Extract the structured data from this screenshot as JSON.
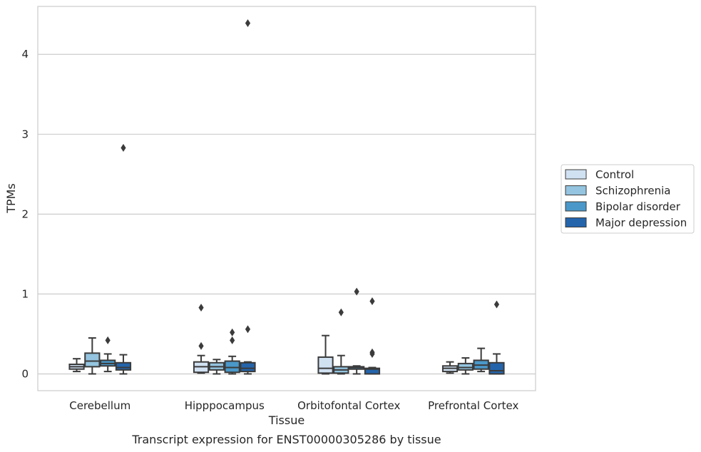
{
  "chart_data": {
    "type": "box",
    "title": "",
    "caption": "Transcript expression for ENST00000305286 by tissue",
    "xlabel": "Tissue",
    "ylabel": "TPMs",
    "ylim": [
      -0.21,
      4.6
    ],
    "yticks": [
      0,
      1,
      2,
      3,
      4
    ],
    "grid": "horizontal",
    "legend_position": "right",
    "categories": [
      "Cerebellum",
      "Hipppocampus",
      "Orbitofontal Cortex",
      "Prefrontal Cortex"
    ],
    "series": [
      {
        "name": "Control",
        "color": "#d0e1f2",
        "boxes": [
          {
            "whislo": 0.03,
            "q1": 0.06,
            "med": 0.09,
            "q3": 0.12,
            "whishi": 0.19,
            "fliers": []
          },
          {
            "whislo": 0.01,
            "q1": 0.02,
            "med": 0.09,
            "q3": 0.15,
            "whishi": 0.23,
            "fliers": [
              0.35,
              0.83
            ]
          },
          {
            "whislo": 0.0,
            "q1": 0.01,
            "med": 0.07,
            "q3": 0.21,
            "whishi": 0.48,
            "fliers": []
          },
          {
            "whislo": 0.01,
            "q1": 0.03,
            "med": 0.07,
            "q3": 0.1,
            "whishi": 0.15,
            "fliers": []
          }
        ]
      },
      {
        "name": "Schizophrenia",
        "color": "#94c4df",
        "boxes": [
          {
            "whislo": 0.0,
            "q1": 0.09,
            "med": 0.16,
            "q3": 0.26,
            "whishi": 0.45,
            "fliers": []
          },
          {
            "whislo": 0.0,
            "q1": 0.05,
            "med": 0.09,
            "q3": 0.14,
            "whishi": 0.18,
            "fliers": []
          },
          {
            "whislo": 0.0,
            "q1": 0.01,
            "med": 0.05,
            "q3": 0.09,
            "whishi": 0.23,
            "fliers": [
              0.77
            ]
          },
          {
            "whislo": 0.0,
            "q1": 0.05,
            "med": 0.08,
            "q3": 0.13,
            "whishi": 0.2,
            "fliers": []
          }
        ]
      },
      {
        "name": "Bipolar disorder",
        "color": "#4a98c9",
        "boxes": [
          {
            "whislo": 0.03,
            "q1": 0.1,
            "med": 0.13,
            "q3": 0.17,
            "whishi": 0.25,
            "fliers": [
              0.42
            ]
          },
          {
            "whislo": 0.0,
            "q1": 0.02,
            "med": 0.08,
            "q3": 0.16,
            "whishi": 0.22,
            "fliers": [
              0.42,
              0.52
            ]
          },
          {
            "whislo": 0.0,
            "q1": 0.06,
            "med": 0.08,
            "q3": 0.09,
            "whishi": 0.1,
            "fliers": [
              1.03
            ]
          },
          {
            "whislo": 0.03,
            "q1": 0.06,
            "med": 0.11,
            "q3": 0.17,
            "whishi": 0.32,
            "fliers": []
          }
        ]
      },
      {
        "name": "Major depression",
        "color": "#2464ab",
        "boxes": [
          {
            "whislo": 0.0,
            "q1": 0.05,
            "med": 0.08,
            "q3": 0.14,
            "whishi": 0.24,
            "fliers": [
              2.83
            ]
          },
          {
            "whislo": 0.0,
            "q1": 0.03,
            "med": 0.07,
            "q3": 0.14,
            "whishi": 0.15,
            "fliers": [
              0.56,
              4.39
            ]
          },
          {
            "whislo": 0.0,
            "q1": 0.0,
            "med": 0.06,
            "q3": 0.07,
            "whishi": 0.08,
            "fliers": [
              0.25,
              0.27,
              0.91
            ]
          },
          {
            "whislo": 0.0,
            "q1": 0.0,
            "med": 0.04,
            "q3": 0.14,
            "whishi": 0.25,
            "fliers": [
              0.87
            ]
          }
        ]
      }
    ]
  }
}
